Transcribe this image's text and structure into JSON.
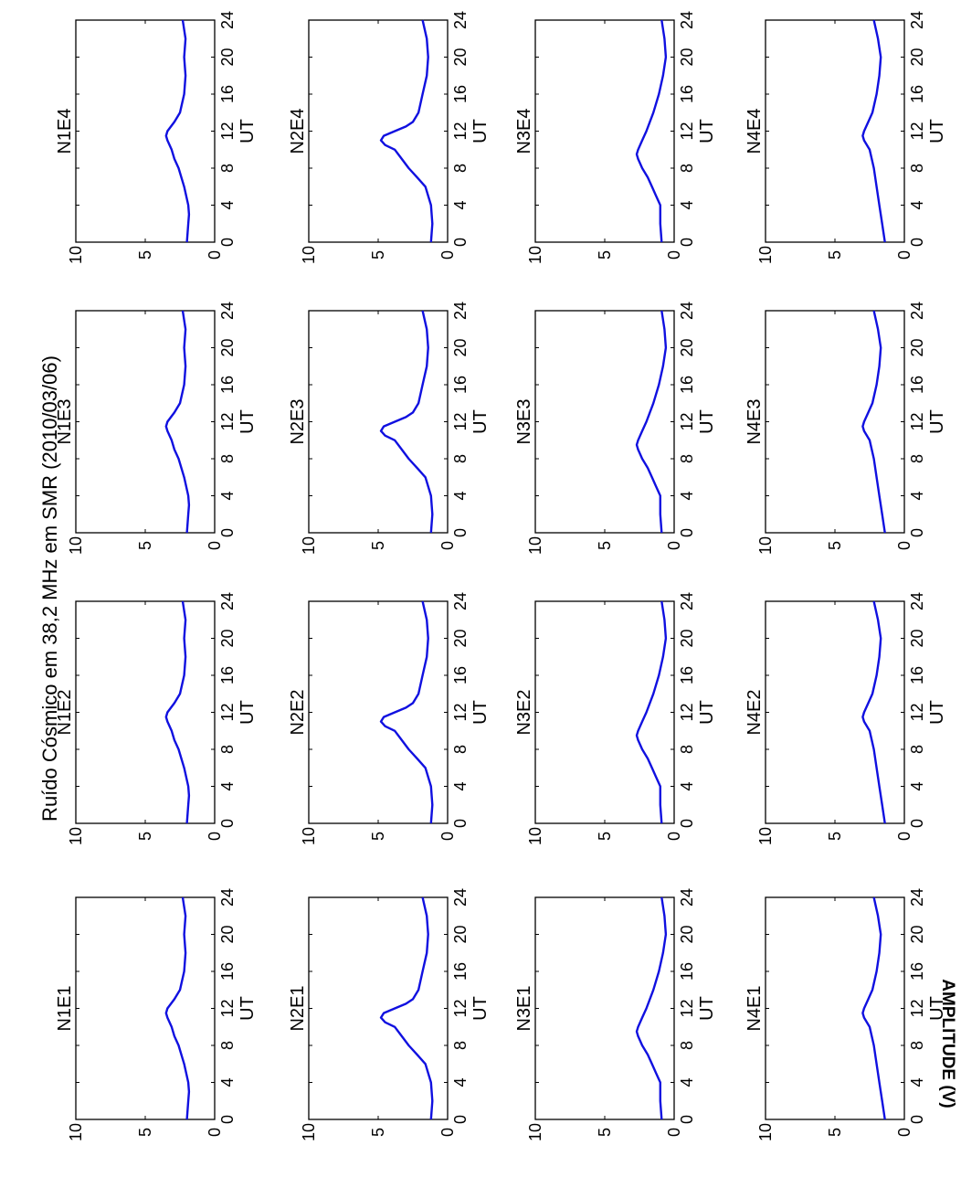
{
  "title": "Ruído Cósmico em 38,2 MHz em SMR (2010/03/06)",
  "ylabel": "AMPLITUDE (V)",
  "series_color": "#1010e0",
  "chart_data": {
    "type": "line",
    "orientation": "rotated-90-ccw",
    "layout": "4x4",
    "xlabel": "UT",
    "xlim": [
      0,
      24
    ],
    "ylim": [
      0,
      10
    ],
    "xticks": [
      0,
      4,
      8,
      12,
      16,
      20,
      24
    ],
    "yticks": [
      0,
      5,
      10
    ],
    "panels": [
      {
        "name": "N1E1",
        "x": [
          0,
          2,
          3,
          4,
          6,
          8,
          9,
          10,
          11,
          11.5,
          12,
          13,
          14,
          16,
          18,
          20,
          22,
          24
        ],
        "y": [
          2.0,
          1.9,
          1.85,
          1.9,
          2.2,
          2.6,
          2.9,
          3.1,
          3.4,
          3.5,
          3.4,
          2.9,
          2.5,
          2.2,
          2.1,
          2.2,
          2.1,
          2.3
        ]
      },
      {
        "name": "N1E2",
        "x": [
          0,
          2,
          3,
          4,
          6,
          8,
          9,
          10,
          11,
          11.5,
          12,
          13,
          14,
          16,
          18,
          20,
          22,
          24
        ],
        "y": [
          2.0,
          1.9,
          1.85,
          1.9,
          2.2,
          2.6,
          2.9,
          3.1,
          3.4,
          3.5,
          3.4,
          2.9,
          2.5,
          2.2,
          2.1,
          2.2,
          2.1,
          2.3
        ]
      },
      {
        "name": "N1E3",
        "x": [
          0,
          2,
          3,
          4,
          6,
          8,
          9,
          10,
          11,
          11.5,
          12,
          13,
          14,
          16,
          18,
          20,
          22,
          24
        ],
        "y": [
          2.0,
          1.9,
          1.85,
          1.9,
          2.2,
          2.6,
          2.9,
          3.1,
          3.4,
          3.5,
          3.4,
          2.9,
          2.5,
          2.2,
          2.1,
          2.2,
          2.1,
          2.3
        ]
      },
      {
        "name": "N1E4",
        "x": [
          0,
          2,
          3,
          4,
          6,
          8,
          9,
          10,
          11,
          11.5,
          12,
          13,
          14,
          16,
          18,
          20,
          22,
          24
        ],
        "y": [
          2.0,
          1.9,
          1.85,
          1.9,
          2.2,
          2.6,
          2.9,
          3.1,
          3.4,
          3.5,
          3.4,
          2.9,
          2.5,
          2.2,
          2.1,
          2.2,
          2.1,
          2.3
        ]
      },
      {
        "name": "N2E1",
        "x": [
          0,
          2,
          4,
          6,
          7,
          8,
          9,
          10,
          10.5,
          11,
          11.5,
          12,
          12.5,
          13,
          14,
          16,
          18,
          20,
          22,
          24
        ],
        "y": [
          1.2,
          1.1,
          1.2,
          1.6,
          2.2,
          2.8,
          3.3,
          3.8,
          4.5,
          4.8,
          4.6,
          3.8,
          3.0,
          2.5,
          2.1,
          1.8,
          1.5,
          1.4,
          1.5,
          1.8
        ]
      },
      {
        "name": "N2E2",
        "x": [
          0,
          2,
          4,
          6,
          7,
          8,
          9,
          10,
          10.5,
          11,
          11.5,
          12,
          12.5,
          13,
          14,
          16,
          18,
          20,
          22,
          24
        ],
        "y": [
          1.2,
          1.1,
          1.2,
          1.6,
          2.2,
          2.8,
          3.3,
          3.8,
          4.5,
          4.8,
          4.6,
          3.8,
          3.0,
          2.5,
          2.1,
          1.8,
          1.5,
          1.4,
          1.5,
          1.8
        ]
      },
      {
        "name": "N2E3",
        "x": [
          0,
          2,
          4,
          6,
          7,
          8,
          9,
          10,
          10.5,
          11,
          11.5,
          12,
          12.5,
          13,
          14,
          16,
          18,
          20,
          22,
          24
        ],
        "y": [
          1.2,
          1.1,
          1.2,
          1.6,
          2.2,
          2.8,
          3.3,
          3.8,
          4.5,
          4.8,
          4.6,
          3.8,
          3.0,
          2.5,
          2.1,
          1.8,
          1.5,
          1.4,
          1.5,
          1.8
        ]
      },
      {
        "name": "N2E4",
        "x": [
          0,
          2,
          4,
          6,
          7,
          8,
          9,
          10,
          10.5,
          11,
          11.5,
          12,
          12.5,
          13,
          14,
          16,
          18,
          20,
          22,
          24
        ],
        "y": [
          1.2,
          1.1,
          1.2,
          1.6,
          2.2,
          2.8,
          3.3,
          3.8,
          4.5,
          4.8,
          4.6,
          3.8,
          3.0,
          2.5,
          2.1,
          1.8,
          1.5,
          1.4,
          1.5,
          1.8
        ]
      },
      {
        "name": "N3E1",
        "x": [
          0,
          2,
          4,
          5,
          6,
          7,
          8,
          9,
          9.5,
          10,
          11,
          12,
          14,
          16,
          18,
          20,
          22,
          24
        ],
        "y": [
          0.9,
          1.0,
          1.0,
          1.3,
          1.6,
          1.9,
          2.3,
          2.6,
          2.7,
          2.6,
          2.3,
          2.0,
          1.5,
          1.1,
          0.8,
          0.6,
          0.7,
          0.9
        ]
      },
      {
        "name": "N3E2",
        "x": [
          0,
          2,
          4,
          5,
          6,
          7,
          8,
          9,
          9.5,
          10,
          11,
          12,
          14,
          16,
          18,
          20,
          22,
          24
        ],
        "y": [
          0.9,
          1.0,
          1.0,
          1.3,
          1.6,
          1.9,
          2.3,
          2.6,
          2.7,
          2.6,
          2.3,
          2.0,
          1.5,
          1.1,
          0.8,
          0.6,
          0.7,
          0.9
        ]
      },
      {
        "name": "N3E3",
        "x": [
          0,
          2,
          4,
          5,
          6,
          7,
          8,
          9,
          9.5,
          10,
          11,
          12,
          14,
          16,
          18,
          20,
          22,
          24
        ],
        "y": [
          0.9,
          1.0,
          1.0,
          1.3,
          1.6,
          1.9,
          2.3,
          2.6,
          2.7,
          2.6,
          2.3,
          2.0,
          1.5,
          1.1,
          0.8,
          0.6,
          0.7,
          0.9
        ]
      },
      {
        "name": "N3E4",
        "x": [
          0,
          2,
          4,
          5,
          6,
          7,
          8,
          9,
          9.5,
          10,
          11,
          12,
          14,
          16,
          18,
          20,
          22,
          24
        ],
        "y": [
          0.9,
          1.0,
          1.0,
          1.3,
          1.6,
          1.9,
          2.3,
          2.6,
          2.7,
          2.6,
          2.3,
          2.0,
          1.5,
          1.1,
          0.8,
          0.6,
          0.7,
          0.9
        ]
      },
      {
        "name": "N4E1",
        "x": [
          0,
          2,
          4,
          6,
          8,
          10,
          11,
          11.5,
          12,
          13,
          14,
          16,
          18,
          20,
          22,
          24
        ],
        "y": [
          1.4,
          1.6,
          1.8,
          2.0,
          2.2,
          2.5,
          2.9,
          3.0,
          2.9,
          2.6,
          2.3,
          2.0,
          1.8,
          1.7,
          1.9,
          2.2
        ]
      },
      {
        "name": "N4E2",
        "x": [
          0,
          2,
          4,
          6,
          8,
          10,
          11,
          11.5,
          12,
          13,
          14,
          16,
          18,
          20,
          22,
          24
        ],
        "y": [
          1.4,
          1.6,
          1.8,
          2.0,
          2.2,
          2.5,
          2.9,
          3.0,
          2.9,
          2.6,
          2.3,
          2.0,
          1.8,
          1.7,
          1.9,
          2.2
        ]
      },
      {
        "name": "N4E3",
        "x": [
          0,
          2,
          4,
          6,
          8,
          10,
          11,
          11.5,
          12,
          13,
          14,
          16,
          18,
          20,
          22,
          24
        ],
        "y": [
          1.4,
          1.6,
          1.8,
          2.0,
          2.2,
          2.5,
          2.9,
          3.0,
          2.9,
          2.6,
          2.3,
          2.0,
          1.8,
          1.7,
          1.9,
          2.2
        ]
      },
      {
        "name": "N4E4",
        "x": [
          0,
          2,
          4,
          6,
          8,
          10,
          11,
          11.5,
          12,
          13,
          14,
          16,
          18,
          20,
          22,
          24
        ],
        "y": [
          1.4,
          1.6,
          1.8,
          2.0,
          2.2,
          2.5,
          2.9,
          3.0,
          2.9,
          2.6,
          2.3,
          2.0,
          1.8,
          1.7,
          1.9,
          2.2
        ]
      }
    ]
  }
}
